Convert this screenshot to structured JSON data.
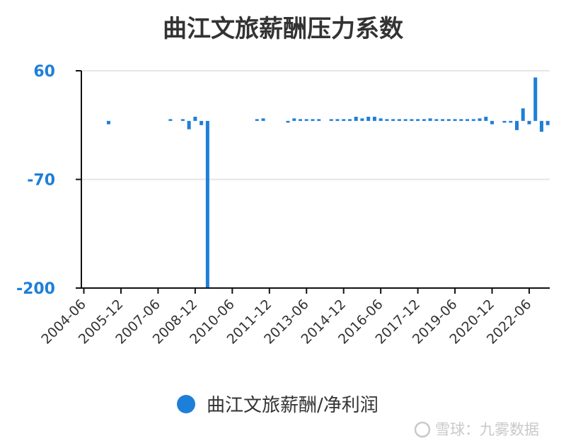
{
  "chart_data": {
    "type": "bar",
    "title": "曲江文旅薪酬压力系数",
    "series": [
      {
        "name": "曲江文旅薪酬/净利润",
        "color": "#1e7fd8"
      }
    ],
    "ylim": [
      -200,
      60
    ],
    "yticks": [
      60,
      -70,
      -200
    ],
    "xticks": [
      "2004-06",
      "2005-12",
      "2007-06",
      "2008-12",
      "2010-06",
      "2011-12",
      "2013-06",
      "2014-12",
      "2016-06",
      "2017-12",
      "2019-06",
      "2020-12",
      "2022-06"
    ],
    "grid": true,
    "legend": "bottom",
    "points": [
      {
        "x": "2005-06",
        "y": -4
      },
      {
        "x": "2007-12",
        "y": 1
      },
      {
        "x": "2008-06",
        "y": 1
      },
      {
        "x": "2008-09",
        "y": -10
      },
      {
        "x": "2008-12",
        "y": 5
      },
      {
        "x": "2009-03",
        "y": -5
      },
      {
        "x": "2009-06",
        "y": -200
      },
      {
        "x": "2011-06",
        "y": 1
      },
      {
        "x": "2011-09",
        "y": 3
      },
      {
        "x": "2012-09",
        "y": -1
      },
      {
        "x": "2012-12",
        "y": 3
      },
      {
        "x": "2013-03",
        "y": 1
      },
      {
        "x": "2013-06",
        "y": 1
      },
      {
        "x": "2013-09",
        "y": 1
      },
      {
        "x": "2013-12",
        "y": 1
      },
      {
        "x": "2014-06",
        "y": 1
      },
      {
        "x": "2014-09",
        "y": 1
      },
      {
        "x": "2014-12",
        "y": 1
      },
      {
        "x": "2015-03",
        "y": 1
      },
      {
        "x": "2015-06",
        "y": 5
      },
      {
        "x": "2015-09",
        "y": 3
      },
      {
        "x": "2015-12",
        "y": 5
      },
      {
        "x": "2016-03",
        "y": 5
      },
      {
        "x": "2016-06",
        "y": 3
      },
      {
        "x": "2016-09",
        "y": 1
      },
      {
        "x": "2016-12",
        "y": 1
      },
      {
        "x": "2017-03",
        "y": 1
      },
      {
        "x": "2017-06",
        "y": 1
      },
      {
        "x": "2017-09",
        "y": 1
      },
      {
        "x": "2017-12",
        "y": 1
      },
      {
        "x": "2018-03",
        "y": 1
      },
      {
        "x": "2018-06",
        "y": 3
      },
      {
        "x": "2018-09",
        "y": 1
      },
      {
        "x": "2018-12",
        "y": 1
      },
      {
        "x": "2019-03",
        "y": 1
      },
      {
        "x": "2019-06",
        "y": 1
      },
      {
        "x": "2019-09",
        "y": 1
      },
      {
        "x": "2019-12",
        "y": 1
      },
      {
        "x": "2020-03",
        "y": 1
      },
      {
        "x": "2020-06",
        "y": 3
      },
      {
        "x": "2020-09",
        "y": 5
      },
      {
        "x": "2020-12",
        "y": -4
      },
      {
        "x": "2021-06",
        "y": -1
      },
      {
        "x": "2021-09",
        "y": -1
      },
      {
        "x": "2021-12",
        "y": -11
      },
      {
        "x": "2022-03",
        "y": 15
      },
      {
        "x": "2022-06",
        "y": -4
      },
      {
        "x": "2022-09",
        "y": 52
      },
      {
        "x": "2022-12",
        "y": -13
      },
      {
        "x": "2023-03",
        "y": -5
      }
    ]
  },
  "legend": {
    "label": "曲江文旅薪酬/净利润"
  },
  "watermark": {
    "text": "雪球：九雾数据"
  }
}
